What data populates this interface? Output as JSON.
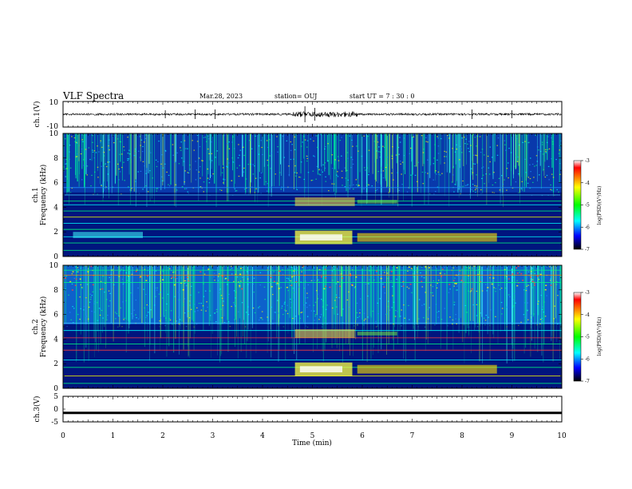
{
  "header": {
    "title": "VLF Spectra",
    "date": "Mar.28, 2023",
    "station": "station= OUJ",
    "start": "start  UT =   7 : 30 : 0"
  },
  "chart_data": [
    {
      "type": "line",
      "title": "",
      "ylabel": "ch.1(V)",
      "ylim": [
        -10,
        10
      ],
      "y_ticks": [
        "10",
        "-10"
      ],
      "xlim": [
        0,
        10
      ],
      "description_series": "waveform amplitude"
    },
    {
      "type": "heatmap",
      "ylabel": "ch.1\nFrequency (kHz)",
      "ylabel_line1": "ch.1",
      "ylabel_line2": "Frequency (kHz)",
      "ylim": [
        0,
        10
      ],
      "y_ticks": [
        "0",
        "2",
        "4",
        "6",
        "8",
        "10"
      ],
      "xlim": [
        0,
        10
      ],
      "colorbar": {
        "label": "log(PSD)(V²/Hz)",
        "range": [
          -7,
          -3
        ],
        "ticks": [
          "-3",
          "-4",
          "-5",
          "-6",
          "-7"
        ]
      }
    },
    {
      "type": "heatmap",
      "ylabel_line1": "ch.2",
      "ylabel_line2": "Frequency (kHz)",
      "ylim": [
        0,
        10
      ],
      "y_ticks": [
        "0",
        "2",
        "4",
        "6",
        "8",
        "10"
      ],
      "xlim": [
        0,
        10
      ],
      "colorbar": {
        "label": "log(PSD)(V²/Hz)",
        "range": [
          -7,
          -3
        ],
        "ticks": [
          "-3",
          "-4",
          "-5",
          "-6",
          "-7"
        ]
      }
    },
    {
      "type": "line",
      "ylabel": "ch.3(V)",
      "ylim": [
        -5,
        5
      ],
      "y_ticks": [
        "5",
        "0",
        "-5"
      ],
      "xlim": [
        0,
        10
      ],
      "value": -1.5
    }
  ],
  "x_axis": {
    "label": "Time  (min)",
    "ticks": [
      "0",
      "1",
      "2",
      "3",
      "4",
      "5",
      "6",
      "7",
      "8",
      "9",
      "10"
    ]
  },
  "colors": {
    "background": "#000080",
    "noise": "#00ff80"
  }
}
